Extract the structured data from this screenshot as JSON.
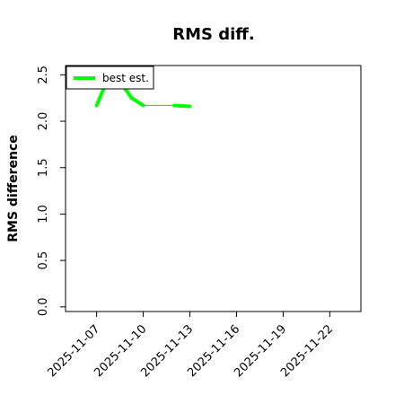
{
  "chart_data": {
    "type": "line",
    "title": "RMS diff.",
    "xlabel": "",
    "ylabel": "RMS difference",
    "x_is_date": true,
    "xlim": [
      "2025-11-05",
      "2025-11-24"
    ],
    "ylim": [
      -0.05,
      2.6
    ],
    "yticks": [
      0.0,
      0.5,
      1.0,
      1.5,
      2.0,
      2.5
    ],
    "ytick_labels": [
      "0.0",
      "0.5",
      "1.0",
      "1.5",
      "2.0",
      "2.5"
    ],
    "xticks": [
      "2025-11-07",
      "2025-11-10",
      "2025-11-13",
      "2025-11-16",
      "2025-11-19",
      "2025-11-22"
    ],
    "xtick_labels": [
      "2025-11-07",
      "2025-11-10",
      "2025-11-13",
      "2025-11-16",
      "2025-11-19",
      "2025-11-22"
    ],
    "grid": false,
    "legend_position": "top-left",
    "series": [
      {
        "name": "best est.",
        "color": "#00ff00",
        "segments": [
          [
            {
              "x": "2025-11-07T00:00",
              "y": 2.17
            },
            {
              "x": "2025-11-07T12:00",
              "y": 2.37
            }
          ],
          [
            {
              "x": "2025-11-08T18:00",
              "y": 2.37
            },
            {
              "x": "2025-11-09T06:00",
              "y": 2.25
            },
            {
              "x": "2025-11-10T00:00",
              "y": 2.17
            },
            {
              "x": "2025-11-11T00:00",
              "y": 2.17
            },
            {
              "x": "2025-11-12T00:00",
              "y": 2.17
            },
            {
              "x": "2025-11-13T00:00",
              "y": 2.16
            }
          ]
        ],
        "thick_ranges": [
          [
            "2025-11-07T00:00",
            "2025-11-10T00:00"
          ],
          [
            "2025-11-12T00:00",
            "2025-11-13T00:00"
          ]
        ]
      }
    ]
  }
}
